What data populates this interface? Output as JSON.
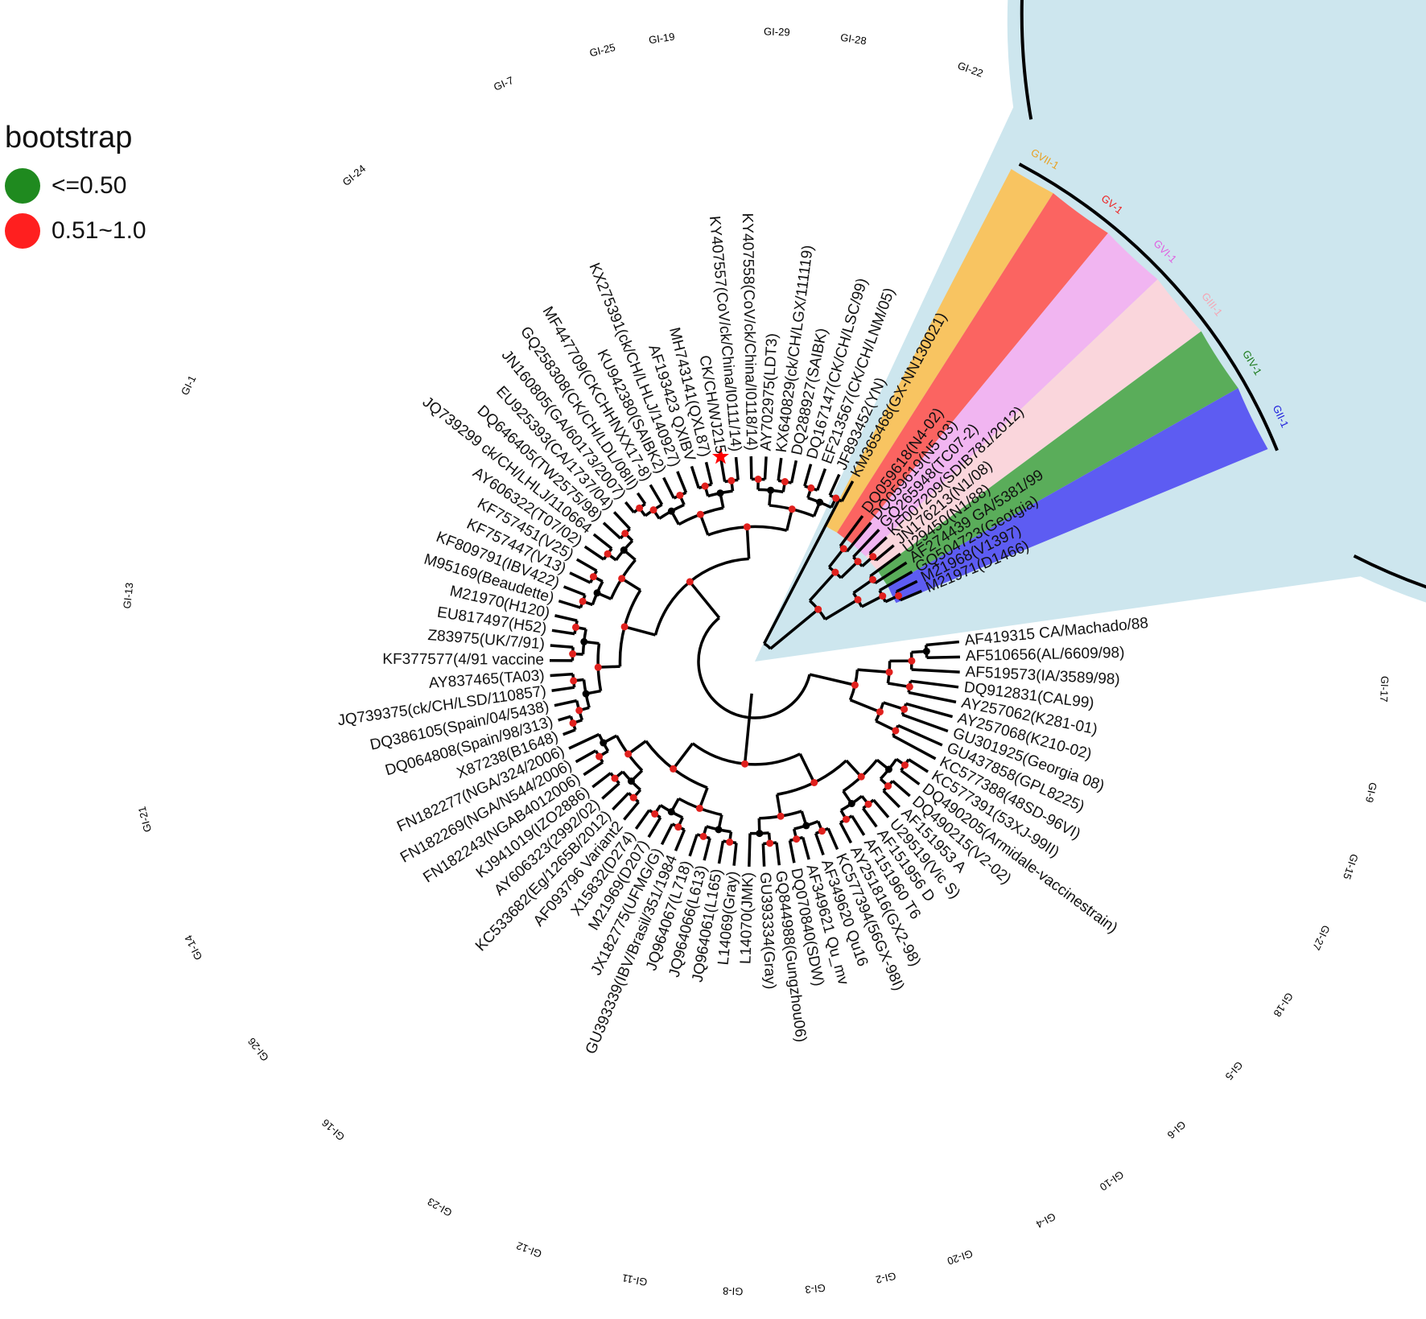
{
  "legend": {
    "title": "bootstrap",
    "items": [
      {
        "label": "<=0.50",
        "color": "#1f8a1f"
      },
      {
        "label": "0.51~1.0",
        "color": "#ff1f1f"
      }
    ]
  },
  "colors": {
    "background_sector": "#cde6ee",
    "GVII-1": "#f8c461",
    "GV-1": "#fb6461",
    "GVI-1": "#f1b5f1",
    "GIII-1": "#fad6dc",
    "GIV-1": "#5aad5a",
    "GII-1": "#5d5cf2",
    "branch": "#000000",
    "node_high": "#e0201d",
    "node_low": "#000000",
    "star": "#ff0000"
  },
  "genotypes": [
    {
      "name": "GI-19"
    },
    {
      "name": "GI-29"
    },
    {
      "name": "GI-28"
    },
    {
      "name": "GI-22"
    },
    {
      "name": "GVII-1",
      "color": "#e8a020"
    },
    {
      "name": "GV-1",
      "color": "#ee2222"
    },
    {
      "name": "GVI-1",
      "color": "#e060e0"
    },
    {
      "name": "GIII-1",
      "color": "#f4a6b4"
    },
    {
      "name": "GIV-1",
      "color": "#1a7a1a"
    },
    {
      "name": "GII-1",
      "color": "#2020dd"
    },
    {
      "name": "GI-17"
    },
    {
      "name": "GI-9"
    },
    {
      "name": "GI-15"
    },
    {
      "name": "GI-27"
    },
    {
      "name": "GI-18"
    },
    {
      "name": "GI-5"
    },
    {
      "name": "GI-6"
    },
    {
      "name": "GI-10"
    },
    {
      "name": "GI-4"
    },
    {
      "name": "GI-20"
    },
    {
      "name": "GI-2"
    },
    {
      "name": "GI-3"
    },
    {
      "name": "GI-8"
    },
    {
      "name": "GI-11"
    },
    {
      "name": "GI-12"
    },
    {
      "name": "GI-23"
    },
    {
      "name": "GI-16"
    },
    {
      "name": "GI-26"
    },
    {
      "name": "GI-14"
    },
    {
      "name": "GI-21"
    },
    {
      "name": "GI-13"
    },
    {
      "name": "GI-1"
    },
    {
      "name": "GI-24"
    },
    {
      "name": "GI-7"
    },
    {
      "name": "GI-25"
    }
  ],
  "taxa_upper": [
    "KM365468(GX-NN130021)",
    "JF893452(YN)",
    "EF213567(CK/CH/LNM/05)",
    "DQ167147(CK/CH/LSC/99)",
    "DQ288927(SAIBK)",
    "KX640829(ck/CH/LGX/111119)",
    "AY702975(LDT3)",
    "KY407558(CoV/ck/China/I0118/14)",
    "KY407557(CoV/ck/China/I0111/14)",
    "CK/CH/WJ215",
    "MH743141(QXL87)",
    "AF193423 QXIBV",
    "KX275391(ck/CH/LHLJ/140927)",
    "KU942380(SAIBK2)",
    "MF447709(CKCHHNXX17-8)",
    "GQ258308(CK/CH/LDL/08II)",
    "JN160805(GA/60173/2007)",
    "EU925393(CA/1737/04)",
    "DQ646405(TW2575/98)",
    "JQ739299 ck/CH/LHLJ/110664",
    "AY606322(T07/02)",
    "KF757451(V25)",
    "KF757447(V13)",
    "KF809791(IBV422)",
    "M95169(Beaudette)",
    "M21970(H120)",
    "EU817497(H52)",
    "Z83975(UK/7/91)",
    "KF377577(4/91 vaccine",
    "AY837465(TA03)",
    "JQ739375(ck/CH/LSD/110857)",
    "DQ386105(Spain/04/5438)",
    "DQ064808(Spain/98/313)",
    "X87238(B1648)",
    "FN182277(NGA/324/2006)",
    "FN182269(NGA/N544/2006)",
    "FN182243(NGAB4012006)",
    "KJ941019(IZO2886)",
    "AY606323(2992/02)",
    "KC533682(Eg/1265B/2012)",
    "AF093796 Variant2",
    "X15832(D274)",
    "M21969(D207)",
    "JX182775(UFMG/G)",
    "GU393339(IBV/Brasil/351/1984",
    "JQ964067(L718)",
    "JQ964066(L613)",
    "JQ964061(L165)",
    "L14069(Gray)",
    "L14070(JMK)",
    "GU393334(Gray)",
    "GQ844988(Gungzhou06)",
    "DQ070840(SDW)",
    "AF349621 Qu_mv",
    "AF349620 Qu16",
    "KC577394(56GX-98I)",
    "AY251816(GX2-98)",
    "AF151960 T6",
    "AF151956 D",
    "U29519(Vic S)",
    "AF151953 A",
    "DQ490215(V2-02)",
    "DQ490205(Armidale-vaccinestrain)",
    "KC577391(53XJ-99II)",
    "KC577388(48SD-96VI)",
    "GU437858(GPL8225)",
    "GU301925(Georgia 08)",
    "AY257068(K210-02)",
    "AY257062(K281-01)",
    "DQ912831(CAL99)",
    "AF519573(IA/3589/98)",
    "AF510656(AL/6609/98)",
    "AF419315 CA/Machado/88"
  ],
  "taxa_outgroup": [
    {
      "label": "DQ059618(N4-02)",
      "group": "GV-1"
    },
    {
      "label": "DQ059619(N5 03)",
      "group": "GV-1"
    },
    {
      "label": "GQ265948(TC07-2)",
      "group": "GVI-1"
    },
    {
      "label": "KF007209(SDIB781/2012)",
      "group": "GVI-1"
    },
    {
      "label": "JN176213(N1/08)",
      "group": "GIII-1"
    },
    {
      "label": "U29450(N1/88)",
      "group": "GIII-1"
    },
    {
      "label": "AF274439 GA/5381/99",
      "group": "GIV-1"
    },
    {
      "label": "GQ504723(Geotgia)",
      "group": "GIV-1"
    },
    {
      "label": "M21968(V1397)",
      "group": "GII-1"
    },
    {
      "label": "M21971(D1466)",
      "group": "GII-1"
    }
  ]
}
